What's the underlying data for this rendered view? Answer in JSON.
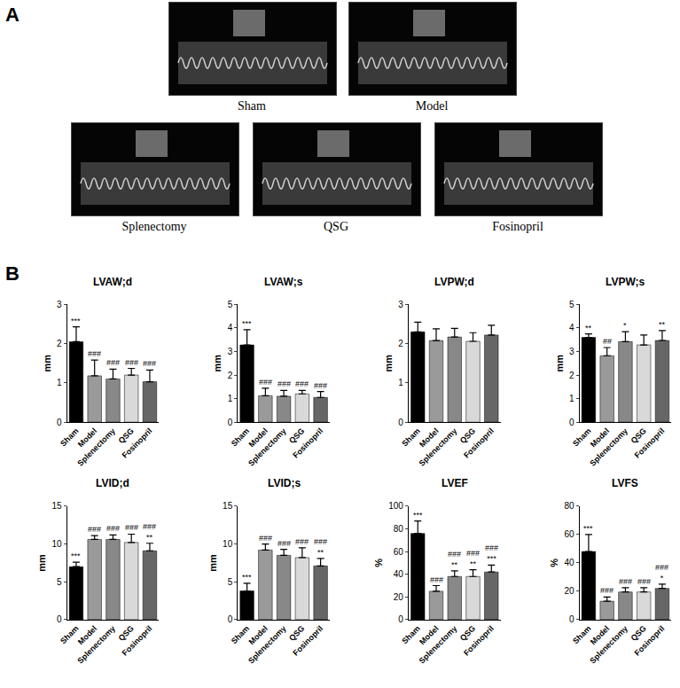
{
  "panel_labels": [
    "A",
    "B"
  ],
  "images": [
    "Sham",
    "Model",
    "Splenectomy",
    "QSG",
    "Fosinopril"
  ],
  "chart_data": [
    {
      "type": "bar",
      "title": "LVAW;d",
      "categories": [
        "Sham",
        "Model",
        "Splenectomy",
        "QSG",
        "Fosinopril"
      ],
      "values": [
        2.05,
        1.18,
        1.1,
        1.2,
        1.03
      ],
      "errors": [
        0.38,
        0.4,
        0.25,
        0.17,
        0.3
      ],
      "colors": [
        "#000000",
        "#9a9a9a",
        "#888888",
        "#d9d9d9",
        "#666666"
      ],
      "y_label": "mm",
      "ylim": [
        0,
        3
      ],
      "yticks": [
        0,
        1,
        2,
        3
      ],
      "significance": [
        [
          "***"
        ],
        [
          "###"
        ],
        [
          "###"
        ],
        [
          "###"
        ],
        [
          "###"
        ]
      ]
    },
    {
      "type": "bar",
      "title": "LVAW;s",
      "categories": [
        "Sham",
        "Model",
        "Splenectomy",
        "QSG",
        "Fosinopril"
      ],
      "values": [
        3.28,
        1.12,
        1.1,
        1.2,
        1.05
      ],
      "errors": [
        0.65,
        0.32,
        0.25,
        0.15,
        0.25
      ],
      "colors": [
        "#000000",
        "#9a9a9a",
        "#888888",
        "#d9d9d9",
        "#666666"
      ],
      "y_label": "mm",
      "ylim": [
        0,
        5
      ],
      "yticks": [
        0,
        1,
        2,
        3,
        4,
        5
      ],
      "significance": [
        [
          "***"
        ],
        [
          "###"
        ],
        [
          "###"
        ],
        [
          "###"
        ],
        [
          "###"
        ]
      ]
    },
    {
      "type": "bar",
      "title": "LVPW;d",
      "categories": [
        "Sham",
        "Model",
        "Splenectomy",
        "QSG",
        "Fosinopril"
      ],
      "values": [
        2.3,
        2.08,
        2.17,
        2.06,
        2.22
      ],
      "errors": [
        0.25,
        0.3,
        0.22,
        0.22,
        0.25
      ],
      "colors": [
        "#000000",
        "#9a9a9a",
        "#888888",
        "#d9d9d9",
        "#666666"
      ],
      "y_label": "mm",
      "ylim": [
        0,
        3
      ],
      "yticks": [
        0,
        1,
        2,
        3
      ],
      "significance": [
        [],
        [],
        [],
        [],
        []
      ]
    },
    {
      "type": "bar",
      "title": "LVPW;s",
      "categories": [
        "Sham",
        "Model",
        "Splenectomy",
        "QSG",
        "Fosinopril"
      ],
      "values": [
        3.6,
        2.82,
        3.42,
        3.28,
        3.47
      ],
      "errors": [
        0.15,
        0.35,
        0.42,
        0.42,
        0.42
      ],
      "colors": [
        "#000000",
        "#9a9a9a",
        "#888888",
        "#d9d9d9",
        "#666666"
      ],
      "y_label": "mm",
      "ylim": [
        0,
        5
      ],
      "yticks": [
        0,
        1,
        2,
        3,
        4,
        5
      ],
      "significance": [
        [
          "**"
        ],
        [
          "##"
        ],
        [
          "*"
        ],
        [],
        [
          "**"
        ]
      ]
    },
    {
      "type": "bar",
      "title": "LVID;d",
      "categories": [
        "Sham",
        "Model",
        "Splenectomy",
        "QSG",
        "Fosinopril"
      ],
      "values": [
        7.0,
        10.6,
        10.6,
        10.2,
        9.1
      ],
      "errors": [
        0.6,
        0.5,
        0.6,
        1.1,
        1.0
      ],
      "colors": [
        "#000000",
        "#9a9a9a",
        "#888888",
        "#d9d9d9",
        "#666666"
      ],
      "y_label": "mm",
      "ylim": [
        0,
        15
      ],
      "yticks": [
        0,
        5,
        10,
        15
      ],
      "significance": [
        [
          "***"
        ],
        [
          "###"
        ],
        [
          "###"
        ],
        [
          "###"
        ],
        [
          "###",
          "**"
        ]
      ]
    },
    {
      "type": "bar",
      "title": "LVID;s",
      "categories": [
        "Sham",
        "Model",
        "Splenectomy",
        "QSG",
        "Fosinopril"
      ],
      "values": [
        3.8,
        9.2,
        8.5,
        8.2,
        7.1
      ],
      "errors": [
        1.0,
        0.8,
        0.8,
        1.3,
        1.0
      ],
      "colors": [
        "#000000",
        "#9a9a9a",
        "#888888",
        "#d9d9d9",
        "#666666"
      ],
      "y_label": "mm",
      "ylim": [
        0,
        15
      ],
      "yticks": [
        0,
        5,
        10,
        15
      ],
      "significance": [
        [
          "***"
        ],
        [
          "###"
        ],
        [
          "###"
        ],
        [
          "###"
        ],
        [
          "###",
          "**"
        ]
      ]
    },
    {
      "type": "bar",
      "title": "LVEF",
      "categories": [
        "Sham",
        "Model",
        "Splenectomy",
        "QSG",
        "Fosinopril"
      ],
      "values": [
        76,
        25,
        38,
        38,
        42
      ],
      "errors": [
        11,
        5,
        5,
        6,
        6
      ],
      "colors": [
        "#000000",
        "#9a9a9a",
        "#888888",
        "#d9d9d9",
        "#666666"
      ],
      "y_label": "%",
      "ylim": [
        0,
        100
      ],
      "yticks": [
        0,
        20,
        40,
        60,
        80,
        100
      ],
      "significance": [
        [
          "***"
        ],
        [
          "###"
        ],
        [
          "###",
          "**"
        ],
        [
          "###",
          "**"
        ],
        [
          "###",
          "***"
        ]
      ]
    },
    {
      "type": "bar",
      "title": "LVFS",
      "categories": [
        "Sham",
        "Model",
        "Splenectomy",
        "QSG",
        "Fosinopril"
      ],
      "values": [
        48,
        13,
        19.5,
        19.5,
        22
      ],
      "errors": [
        12,
        3,
        3,
        3,
        3
      ],
      "colors": [
        "#000000",
        "#9a9a9a",
        "#888888",
        "#d9d9d9",
        "#666666"
      ],
      "y_label": "%",
      "ylim": [
        0,
        80
      ],
      "yticks": [
        0,
        20,
        40,
        60,
        80
      ],
      "significance": [
        [
          "***"
        ],
        [
          "###"
        ],
        [
          "###"
        ],
        [
          "###"
        ],
        [
          "###",
          "*"
        ]
      ]
    }
  ]
}
